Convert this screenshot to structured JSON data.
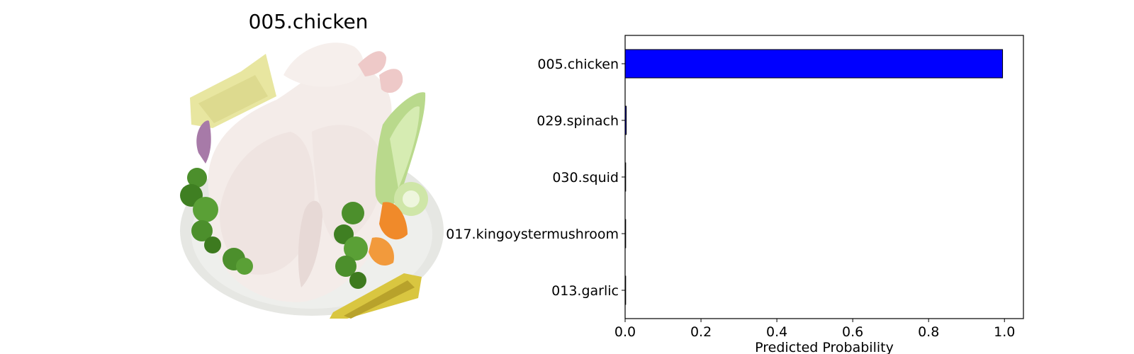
{
  "image_panel": {
    "title": "005.chicken",
    "image_icon": "raw-chicken-on-plate-with-vegetables"
  },
  "chart_data": {
    "type": "bar",
    "orientation": "horizontal",
    "categories": [
      "005.chicken",
      "029.spinach",
      "030.squid",
      "017.kingoystermushroom",
      "013.garlic"
    ],
    "values": [
      0.995,
      0.003,
      0.001,
      0.001,
      0.0005
    ],
    "xlabel": "Predicted Probability",
    "ylabel": "",
    "xlim": [
      0,
      1.05
    ],
    "xticks": [
      0.0,
      0.2,
      0.4,
      0.6,
      0.8,
      1.0
    ],
    "xtick_labels": [
      "0.0",
      "0.2",
      "0.4",
      "0.6",
      "0.8",
      "1.0"
    ],
    "bar_color": "#0000ff",
    "edge_color": "#000000",
    "grid": false
  }
}
